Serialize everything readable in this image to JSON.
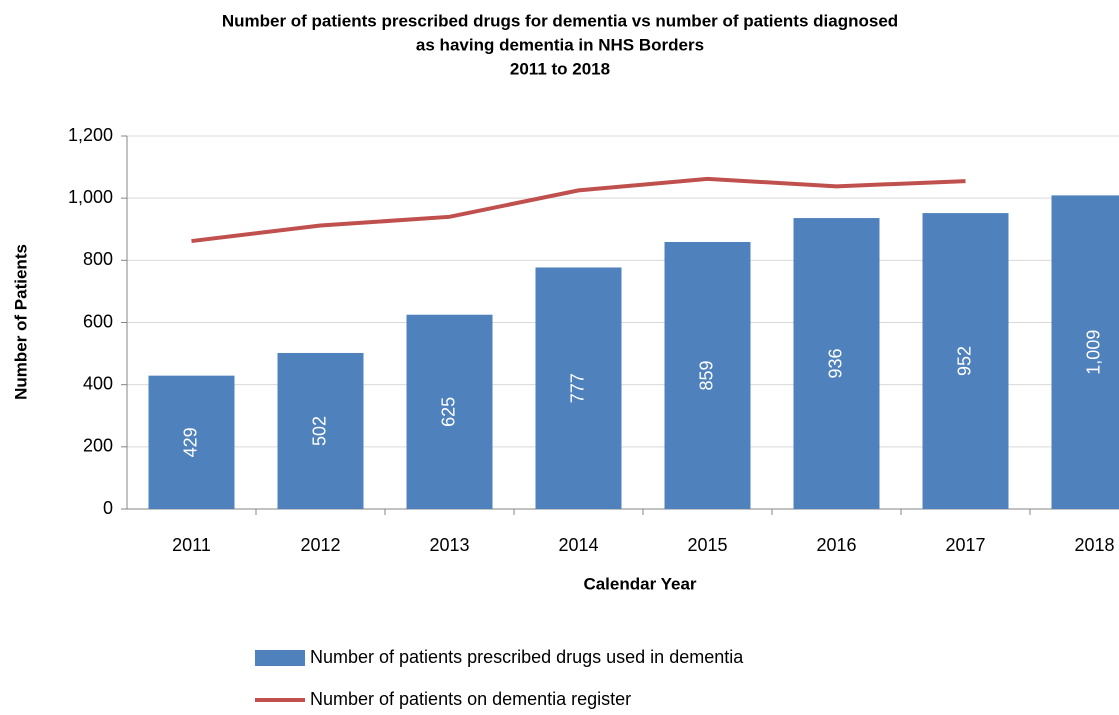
{
  "chart_data": {
    "type": "bar",
    "title": [
      "Number of patients prescribed drugs for dementia vs number of patients diagnosed",
      "as having dementia in NHS Borders",
      "2011 to 2018"
    ],
    "x_label": "Calendar Year",
    "y_label": "Number of Patients",
    "categories": [
      "2011",
      "2012",
      "2013",
      "2014",
      "2015",
      "2016",
      "2017",
      "2018"
    ],
    "series": [
      {
        "name": "Number of patients prescribed drugs used in dementia",
        "type": "bar",
        "color": "#4f81bd",
        "values": [
          429,
          502,
          625,
          777,
          859,
          936,
          952,
          1009
        ],
        "value_labels": [
          "429",
          "502",
          "625",
          "777",
          "859",
          "936",
          "952",
          "1,009"
        ]
      },
      {
        "name": "Number of patients on dementia register",
        "type": "line",
        "color": "#c0504d",
        "values": [
          862,
          912,
          940,
          1025,
          1062,
          1038,
          1055,
          null
        ]
      }
    ],
    "ylim": [
      0,
      1200
    ],
    "yticks": [
      0,
      200,
      400,
      600,
      800,
      {
        "value": 1000,
        "label": "1,000"
      },
      {
        "value": 1200,
        "label": "1,200"
      }
    ],
    "grid": true,
    "legend": "bottom"
  }
}
